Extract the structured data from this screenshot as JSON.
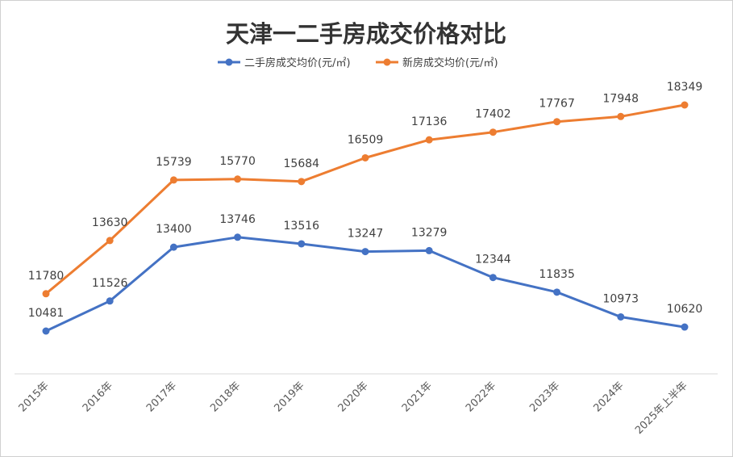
{
  "chart_data": {
    "type": "line",
    "title": "天津一二手房成交价格对比",
    "categories": [
      "2015年",
      "2016年",
      "2017年",
      "2018年",
      "2019年",
      "2020年",
      "2021年",
      "2022年",
      "2023年",
      "2024年",
      "2025年上半年"
    ],
    "series": [
      {
        "name": "二手房成交均价(元/㎡)",
        "color": "#4472C4",
        "values": [
          10481,
          11526,
          13400,
          13746,
          13516,
          13247,
          13279,
          12344,
          11835,
          10973,
          10620
        ]
      },
      {
        "name": "新房成交均价(元/㎡)",
        "color": "#ED7D31",
        "values": [
          11780,
          13630,
          15739,
          15770,
          15684,
          16509,
          17136,
          17402,
          17767,
          17948,
          18349
        ]
      }
    ],
    "legend_position": "top",
    "grid": false,
    "ylim": [
      8000,
      19000
    ],
    "xlabel": "",
    "ylabel": ""
  }
}
